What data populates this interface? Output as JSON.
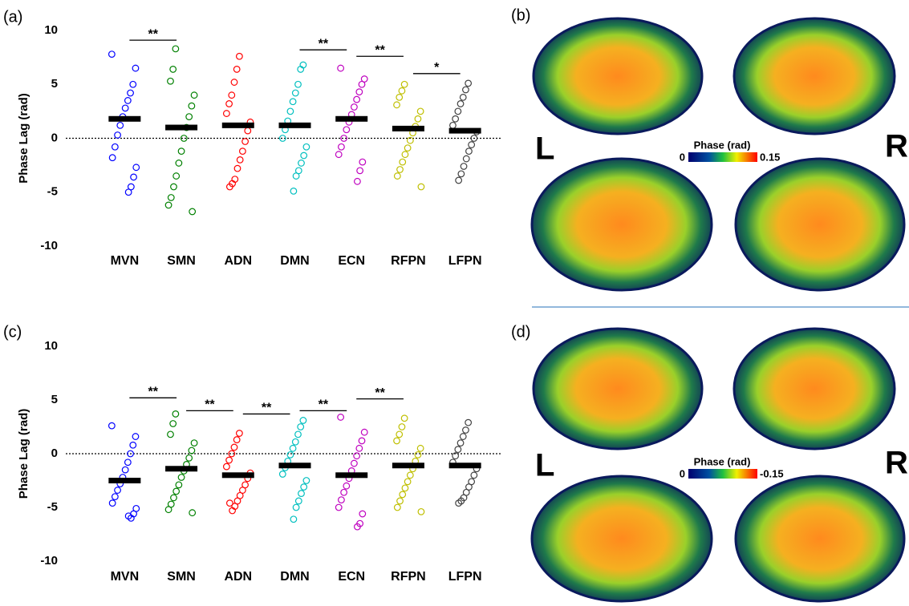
{
  "chart_data": [
    {
      "type": "strip",
      "panel_label": "(a)",
      "y_label": "Phase Lag (rad)",
      "categories": [
        "MVN",
        "SMN",
        "ADN",
        "DMN",
        "ECN",
        "RFPN",
        "LFPN"
      ],
      "colors": [
        "#0000ff",
        "#008000",
        "#ff0000",
        "#00bfbf",
        "#bf00bf",
        "#bfbf00",
        "#404040"
      ],
      "means": [
        1.8,
        1.0,
        1.2,
        1.2,
        1.8,
        0.9,
        0.7
      ],
      "points": [
        [
          7.8,
          6.5,
          5.0,
          4.2,
          3.5,
          2.8,
          2.0,
          1.2,
          0.3,
          -0.8,
          -1.8,
          -2.7,
          -3.6,
          -4.5,
          -5.0
        ],
        [
          8.3,
          6.4,
          5.3,
          4.0,
          3.0,
          2.0,
          1.0,
          0.0,
          -1.2,
          -2.3,
          -3.5,
          -4.5,
          -5.5,
          -6.2,
          -6.8
        ],
        [
          7.6,
          6.4,
          5.2,
          4.0,
          3.2,
          2.3,
          1.5,
          0.7,
          -0.3,
          -1.2,
          -2.0,
          -2.8,
          -3.8,
          -4.2,
          -4.5
        ],
        [
          6.8,
          6.4,
          5.0,
          4.2,
          3.4,
          2.5,
          1.6,
          0.8,
          0.0,
          -0.8,
          -1.6,
          -2.3,
          -3.0,
          -3.5,
          -4.9
        ],
        [
          6.5,
          5.5,
          5.0,
          4.3,
          3.6,
          2.9,
          2.2,
          1.5,
          0.8,
          0.0,
          -0.8,
          -1.5,
          -2.2,
          -3.0,
          -4.0
        ],
        [
          5.0,
          4.4,
          3.8,
          3.1,
          2.5,
          1.8,
          1.1,
          0.5,
          -0.2,
          -0.9,
          -1.5,
          -2.2,
          -2.9,
          -3.5,
          -4.5
        ],
        [
          5.1,
          4.5,
          3.8,
          3.2,
          2.5,
          1.8,
          1.2,
          0.6,
          0.0,
          -0.6,
          -1.2,
          -1.9,
          -2.6,
          -3.3,
          -3.9
        ]
      ],
      "ylim": [
        -10,
        10
      ],
      "yticks": [
        -10,
        -5,
        0,
        5,
        10
      ],
      "hline": 0,
      "significance": [
        {
          "from": "MVN",
          "to": "SMN",
          "y": 9.1,
          "label": "**"
        },
        {
          "from": "DMN",
          "to": "ECN",
          "y": 8.2,
          "label": "**"
        },
        {
          "from": "ECN",
          "to": "RFPN",
          "y": 7.6,
          "label": "**"
        },
        {
          "from": "RFPN",
          "to": "LFPN",
          "y": 6.0,
          "label": "*"
        }
      ]
    },
    {
      "type": "strip",
      "panel_label": "(c)",
      "y_label": "Phase Lag (rad)",
      "categories": [
        "MVN",
        "SMN",
        "ADN",
        "DMN",
        "ECN",
        "RFPN",
        "LFPN"
      ],
      "colors": [
        "#0000ff",
        "#008000",
        "#ff0000",
        "#00bfbf",
        "#bf00bf",
        "#bfbf00",
        "#404040"
      ],
      "means": [
        -2.5,
        -1.4,
        -2.0,
        -1.1,
        -2.0,
        -1.1,
        -1.1
      ],
      "points": [
        [
          2.6,
          1.6,
          0.8,
          0.0,
          -0.8,
          -1.5,
          -2.2,
          -2.8,
          -3.4,
          -4.0,
          -4.6,
          -5.1,
          -5.6,
          -6.0,
          -5.8
        ],
        [
          3.7,
          2.8,
          1.8,
          1.0,
          0.3,
          -0.4,
          -1.0,
          -1.6,
          -2.2,
          -2.9,
          -3.5,
          -4.1,
          -4.7,
          -5.2,
          -5.5
        ],
        [
          1.9,
          1.3,
          0.6,
          0.0,
          -0.6,
          -1.2,
          -1.8,
          -2.3,
          -2.9,
          -3.4,
          -3.9,
          -4.4,
          -4.9,
          -5.3,
          -4.6
        ],
        [
          3.1,
          2.5,
          1.8,
          1.1,
          0.5,
          -0.1,
          -0.7,
          -1.3,
          -1.9,
          -2.5,
          -3.1,
          -3.7,
          -4.4,
          -5.0,
          -6.1
        ],
        [
          3.4,
          2.0,
          1.2,
          0.5,
          -0.2,
          -0.9,
          -1.6,
          -2.3,
          -3.0,
          -3.6,
          -4.3,
          -5.0,
          -5.6,
          -6.5,
          -6.8
        ],
        [
          3.3,
          2.5,
          1.8,
          1.2,
          0.5,
          -0.1,
          -0.7,
          -1.4,
          -2.0,
          -2.6,
          -3.2,
          -3.8,
          -4.4,
          -5.0,
          -5.4
        ],
        [
          2.9,
          2.2,
          1.6,
          1.0,
          0.4,
          -0.2,
          -0.8,
          -1.4,
          -2.0,
          -2.6,
          -3.1,
          -3.6,
          -4.1,
          -4.4,
          -4.6
        ]
      ],
      "ylim": [
        -10,
        10
      ],
      "yticks": [
        -10,
        -5,
        0,
        5,
        10
      ],
      "hline": 0,
      "significance": [
        {
          "from": "MVN",
          "to": "SMN",
          "y": 5.2,
          "label": "**"
        },
        {
          "from": "SMN",
          "to": "ADN",
          "y": 4.0,
          "label": "**"
        },
        {
          "from": "ADN",
          "to": "DMN",
          "y": 3.7,
          "label": "**"
        },
        {
          "from": "DMN",
          "to": "ECN",
          "y": 4.0,
          "label": "**"
        },
        {
          "from": "ECN",
          "to": "RFPN",
          "y": 5.1,
          "label": "**"
        }
      ]
    }
  ],
  "brain_panels": [
    {
      "panel_label": "(b)",
      "left": "L",
      "right": "R",
      "colorbar_title": "Phase (rad)",
      "colorbar_ticks": [
        0,
        0.15
      ]
    },
    {
      "panel_label": "(d)",
      "left": "L",
      "right": "R",
      "colorbar_title": "Phase (rad)",
      "colorbar_ticks": [
        0,
        -0.15
      ]
    }
  ]
}
